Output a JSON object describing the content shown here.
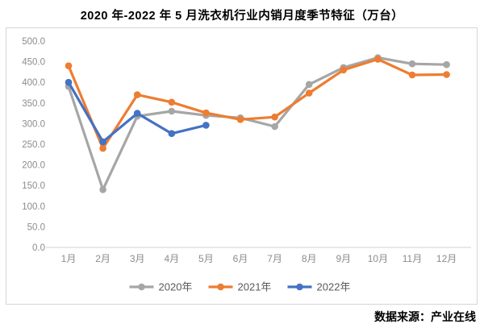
{
  "title": "2020 年-2022 年 5 月洗衣机行业内销月度季节特征（万台）",
  "source_note": "数据来源：产业在线",
  "chart_data": {
    "type": "line",
    "title": "2020 年-2022 年 5 月洗衣机行业内销月度季节特征（万台）",
    "categories": [
      "1月",
      "2月",
      "3月",
      "4月",
      "5月",
      "6月",
      "7月",
      "8月",
      "9月",
      "10月",
      "11月",
      "12月"
    ],
    "series": [
      {
        "name": "2020年",
        "color": "#A6A6A6",
        "values": [
          390,
          140,
          318,
          330,
          320,
          314,
          293,
          395,
          436,
          460,
          445,
          443
        ]
      },
      {
        "name": "2021年",
        "color": "#ED7D31",
        "values": [
          440,
          240,
          370,
          352,
          326,
          310,
          316,
          374,
          430,
          456,
          418,
          419
        ]
      },
      {
        "name": "2022年",
        "color": "#4472C4",
        "values": [
          400,
          256,
          325,
          276,
          296
        ]
      }
    ],
    "xlabel": "",
    "ylabel": "",
    "ylim": [
      0,
      500
    ],
    "ytick_step": 50,
    "ytick_labels": [
      "0.0",
      "50.0",
      "100.0",
      "150.0",
      "200.0",
      "250.0",
      "300.0",
      "350.0",
      "400.0",
      "450.0",
      "500.0"
    ],
    "grid": false,
    "legend_position": "bottom",
    "marker": "circle"
  },
  "colors": {
    "axis_label": "#8C8C8C",
    "axis_line": "#D9D9D9",
    "frame_border": "#D6D6D6",
    "legend_text": "#595959",
    "title_text": "#000000"
  }
}
